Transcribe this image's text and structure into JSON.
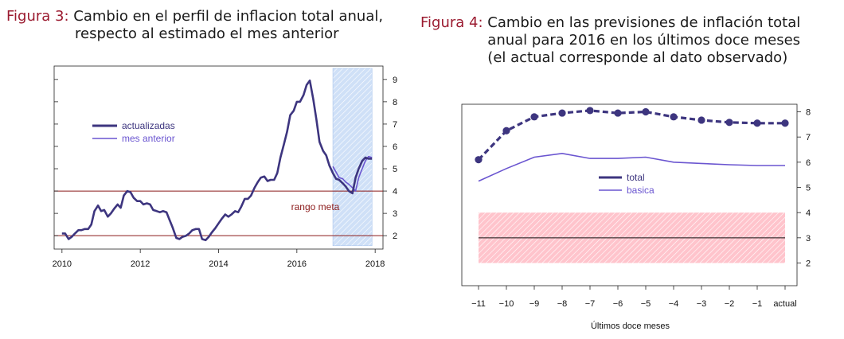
{
  "fig3": {
    "label": "Figura 3:",
    "title_line1": "Cambio en el perfil de inflacion total anual,",
    "title_line2": "respecto al estimado el mes anterior"
  },
  "fig4": {
    "label": "Figura 4:",
    "title": "Cambio en las previsiones de inflación total anual para 2016 en los últimos doce meses (el actual corresponde al dato observado)"
  },
  "colors": {
    "dark": "#3d357f",
    "light": "#6a55d0",
    "red": "#8b1a1a",
    "caption_label": "#9b1b30",
    "band3": "#cfe0f7",
    "band4": "#ffc4cc"
  },
  "chart_data": [
    {
      "type": "line",
      "xlim": [
        2009.8,
        2018.2
      ],
      "ylim": [
        1.4,
        9.6
      ],
      "xticks": [
        2010,
        2012,
        2014,
        2016,
        2018
      ],
      "yticks": [
        2,
        3,
        4,
        5,
        6,
        7,
        8,
        9
      ],
      "axis_side": "right",
      "hlines": [
        2,
        4
      ],
      "shaded_x": [
        2016.92,
        2017.92
      ],
      "annotation": "rango meta",
      "legend": {
        "position": "left",
        "entries": [
          "actualizadas",
          "mes anterior"
        ]
      },
      "series": [
        {
          "name": "actualizadas",
          "x": [
            2010.0,
            2010.08,
            2010.17,
            2010.25,
            2010.33,
            2010.42,
            2010.5,
            2010.58,
            2010.67,
            2010.75,
            2010.83,
            2010.92,
            2011.0,
            2011.08,
            2011.17,
            2011.25,
            2011.33,
            2011.42,
            2011.5,
            2011.58,
            2011.67,
            2011.75,
            2011.83,
            2011.92,
            2012.0,
            2012.08,
            2012.17,
            2012.25,
            2012.33,
            2012.42,
            2012.5,
            2012.58,
            2012.67,
            2012.75,
            2012.83,
            2012.92,
            2013.0,
            2013.08,
            2013.17,
            2013.25,
            2013.33,
            2013.42,
            2013.5,
            2013.58,
            2013.67,
            2013.75,
            2013.83,
            2013.92,
            2014.0,
            2014.08,
            2014.17,
            2014.25,
            2014.33,
            2014.42,
            2014.5,
            2014.58,
            2014.67,
            2014.75,
            2014.83,
            2014.92,
            2015.0,
            2015.08,
            2015.17,
            2015.25,
            2015.33,
            2015.42,
            2015.5,
            2015.58,
            2015.67,
            2015.75,
            2015.83,
            2015.92,
            2016.0,
            2016.08,
            2016.17,
            2016.25,
            2016.33,
            2016.42,
            2016.5,
            2016.58,
            2016.67,
            2016.75,
            2016.83,
            2016.92,
            2017.0,
            2017.08,
            2017.17,
            2017.25,
            2017.33,
            2017.42,
            2017.5,
            2017.58,
            2017.67,
            2017.75,
            2017.83,
            2017.92
          ],
          "y": [
            2.1,
            2.1,
            1.85,
            1.95,
            2.1,
            2.25,
            2.25,
            2.3,
            2.3,
            2.5,
            3.1,
            3.35,
            3.1,
            3.15,
            2.85,
            3.0,
            3.2,
            3.4,
            3.25,
            3.8,
            4.0,
            3.95,
            3.7,
            3.55,
            3.55,
            3.4,
            3.45,
            3.4,
            3.15,
            3.1,
            3.05,
            3.1,
            3.05,
            2.7,
            2.35,
            1.9,
            1.85,
            1.95,
            2.0,
            2.1,
            2.25,
            2.3,
            2.3,
            1.85,
            1.8,
            1.95,
            2.15,
            2.35,
            2.55,
            2.75,
            2.95,
            2.85,
            2.95,
            3.1,
            3.05,
            3.3,
            3.65,
            3.65,
            3.8,
            4.15,
            4.4,
            4.6,
            4.65,
            4.45,
            4.5,
            4.5,
            4.8,
            5.5,
            6.1,
            6.65,
            7.4,
            7.6,
            8.0,
            8.0,
            8.3,
            8.75,
            8.95,
            8.1,
            7.2,
            6.2,
            5.8,
            5.6,
            5.15,
            4.8,
            4.55,
            4.5,
            4.35,
            4.2,
            4.0,
            3.9,
            4.6,
            5.0,
            5.35,
            5.5,
            5.45,
            5.45
          ]
        },
        {
          "name": "mes anterior",
          "x": [
            2016.92,
            2017.0,
            2017.08,
            2017.17,
            2017.25,
            2017.33,
            2017.42,
            2017.5,
            2017.58,
            2017.67,
            2017.75,
            2017.83,
            2017.92
          ],
          "y": [
            5.1,
            4.85,
            4.6,
            4.55,
            4.4,
            4.3,
            4.15,
            4.0,
            4.6,
            5.0,
            5.35,
            5.55,
            5.5
          ]
        }
      ]
    },
    {
      "type": "line",
      "categories": [
        "−11",
        "−10",
        "−9",
        "−8",
        "−7",
        "−6",
        "−5",
        "−4",
        "−3",
        "−2",
        "−1",
        "actual"
      ],
      "xlabel": "Últimos doce meses",
      "ylim": [
        1.1,
        8.3
      ],
      "yticks": [
        2,
        3,
        4,
        5,
        6,
        7,
        8
      ],
      "axis_side": "right",
      "hlines": [
        3
      ],
      "shaded_y": [
        2,
        4
      ],
      "legend": {
        "position": "center",
        "entries": [
          "total",
          "basica"
        ]
      },
      "series": [
        {
          "name": "total",
          "markers": true,
          "values": [
            6.1,
            7.25,
            7.8,
            7.95,
            8.05,
            7.95,
            8.0,
            7.8,
            7.67,
            7.58,
            7.55,
            7.55
          ]
        },
        {
          "name": "basica",
          "markers": false,
          "values": [
            5.25,
            5.75,
            6.2,
            6.35,
            6.15,
            6.15,
            6.2,
            6.0,
            5.95,
            5.9,
            5.87,
            5.87
          ]
        }
      ]
    }
  ]
}
